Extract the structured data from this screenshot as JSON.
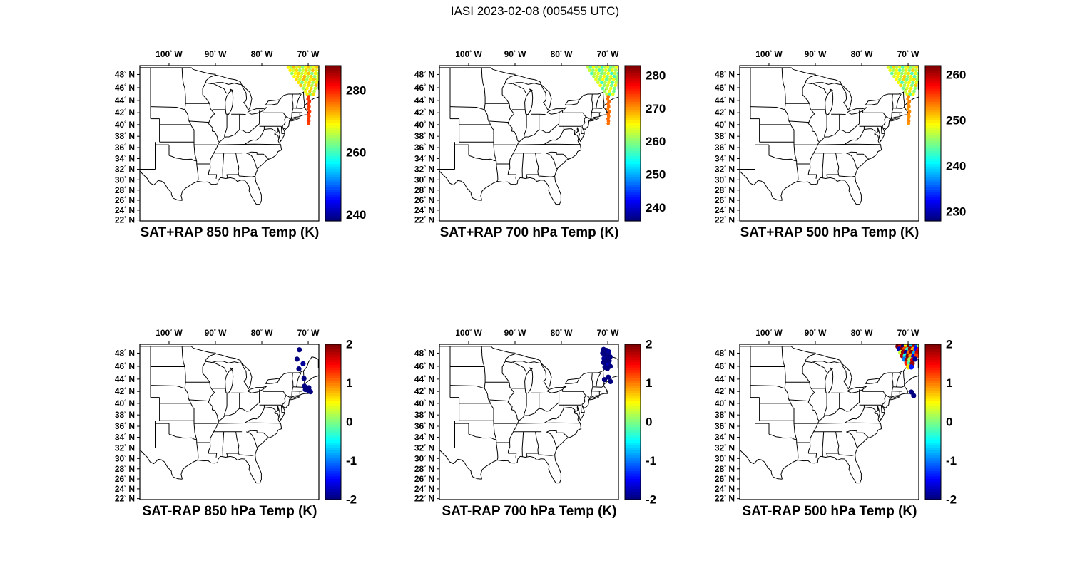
{
  "figure_title": "IASI 2023-02-08 (005455 UTC)",
  "axes": {
    "lon_range": [
      -106.3,
      -67.7
    ],
    "lat_range": [
      21.8,
      49.3
    ],
    "lon_tick_values": [
      -100,
      -90,
      -80,
      -70
    ],
    "lon_tick_labels": [
      "100",
      "90",
      "80",
      "70"
    ],
    "lon_suffix": "W",
    "lat_tick_values": [
      48,
      46,
      44,
      42,
      40,
      38,
      36,
      34,
      32,
      30,
      28,
      26,
      24,
      22
    ],
    "lat_tick_labels": [
      "48",
      "46",
      "44",
      "42",
      "40",
      "38",
      "36",
      "34",
      "32",
      "30",
      "28",
      "26",
      "24",
      "22"
    ],
    "lat_suffix": "N"
  },
  "chart_data": [
    {
      "type": "scatter-map",
      "title": "SAT+RAP 850 hPa Temp (K)",
      "level_hPa": 850,
      "quantity": "SAT+RAP Temp (K)",
      "colormap": "jet",
      "cmin": 238,
      "cmax": 288,
      "colorbar_ticks": [
        240,
        260,
        280
      ],
      "swath_base": 268,
      "swath_spread": 5,
      "streak_value": 279
    },
    {
      "type": "scatter-map",
      "title": "SAT+RAP 700 hPa Temp (K)",
      "level_hPa": 700,
      "quantity": "SAT+RAP Temp (K)",
      "colormap": "jet",
      "cmin": 236,
      "cmax": 283,
      "colorbar_ticks": [
        240,
        250,
        260,
        270,
        280
      ],
      "swath_base": 261,
      "swath_spread": 5,
      "streak_value": 272
    },
    {
      "type": "scatter-map",
      "title": "SAT+RAP 500 hPa Temp (K)",
      "level_hPa": 500,
      "quantity": "SAT+RAP Temp (K)",
      "colormap": "jet",
      "cmin": 228,
      "cmax": 262,
      "colorbar_ticks": [
        230,
        240,
        250,
        260
      ],
      "swath_base": 247,
      "swath_spread": 4,
      "streak_value": 253
    },
    {
      "type": "scatter-map",
      "title": "SAT-RAP 850 hPa Temp (K)",
      "level_hPa": 850,
      "quantity": "SAT-RAP Temp (K)",
      "colormap": "jet",
      "cmin": -2,
      "cmax": 2,
      "colorbar_ticks": [
        -2,
        -1,
        0,
        1,
        2
      ],
      "points": [
        [
          -71.9,
          48.5,
          -2
        ],
        [
          -72.4,
          47.1,
          -2
        ],
        [
          -71.1,
          46.4,
          -1.9
        ],
        [
          -72.0,
          45.6,
          -2
        ],
        [
          -70.9,
          44.1,
          -2
        ],
        [
          -70.8,
          42.85,
          -2
        ],
        [
          -70.3,
          42.55,
          -1.9
        ],
        [
          -70.6,
          42.3,
          -2
        ],
        [
          -70.05,
          42.2,
          -2
        ],
        [
          -69.85,
          42.6,
          -2
        ],
        [
          -69.5,
          41.95,
          -2
        ]
      ]
    },
    {
      "type": "scatter-map",
      "title": "SAT-RAP 700 hPa Temp (K)",
      "level_hPa": 700,
      "quantity": "SAT-RAP Temp (K)",
      "colormap": "jet",
      "cmin": -2,
      "cmax": 2,
      "colorbar_ticks": [
        -2,
        -1,
        0,
        1,
        2
      ],
      "points": [
        [
          -70.9,
          48.55,
          -2
        ],
        [
          -70.3,
          48.4,
          -2
        ],
        [
          -69.8,
          48.2,
          -1.9
        ],
        [
          -71.1,
          48.0,
          -2
        ],
        [
          -70.55,
          47.8,
          -2
        ],
        [
          -70.0,
          47.6,
          -2
        ],
        [
          -69.5,
          47.45,
          -2
        ],
        [
          -70.8,
          47.2,
          -1.9
        ],
        [
          -70.25,
          47.0,
          -2
        ],
        [
          -69.7,
          46.85,
          -2
        ],
        [
          -70.95,
          46.6,
          -2
        ],
        [
          -70.4,
          46.4,
          -2
        ],
        [
          -69.85,
          46.2,
          -1.8
        ],
        [
          -69.45,
          46.0,
          -2
        ],
        [
          -70.6,
          45.85,
          -2
        ],
        [
          -70.1,
          45.65,
          -2
        ],
        [
          -69.9,
          44.3,
          -2
        ],
        [
          -70.7,
          43.9,
          -2
        ],
        [
          -69.4,
          43.6,
          -2
        ]
      ]
    },
    {
      "type": "scatter-map",
      "title": "SAT-RAP 500 hPa Temp (K)",
      "level_hPa": 500,
      "quantity": "SAT-RAP Temp (K)",
      "colormap": "jet",
      "cmin": -2,
      "cmax": 2,
      "colorbar_ticks": [
        -2,
        -1,
        0,
        1,
        2
      ],
      "points": [
        [
          -72.2,
          49.0,
          2
        ],
        [
          -71.6,
          49.1,
          1.6
        ],
        [
          -71.0,
          49.0,
          -2
        ],
        [
          -70.4,
          49.1,
          0.5
        ],
        [
          -69.8,
          49.0,
          2
        ],
        [
          -69.2,
          49.05,
          -0.6
        ],
        [
          -68.6,
          49.0,
          1.8
        ],
        [
          -68.0,
          49.1,
          -1.2
        ],
        [
          -67.6,
          49.0,
          0.2
        ],
        [
          -71.9,
          48.6,
          -1.8
        ],
        [
          -71.3,
          48.55,
          2
        ],
        [
          -70.7,
          48.6,
          1.2
        ],
        [
          -70.1,
          48.5,
          -0.3
        ],
        [
          -69.5,
          48.6,
          1.9
        ],
        [
          -68.9,
          48.55,
          0.8
        ],
        [
          -68.3,
          48.6,
          -1.5
        ],
        [
          -67.7,
          48.5,
          1.5
        ],
        [
          -71.6,
          48.1,
          0.3
        ],
        [
          -71.0,
          48.15,
          1.9
        ],
        [
          -70.4,
          48.1,
          -1.9
        ],
        [
          -69.8,
          48.05,
          1.1
        ],
        [
          -69.2,
          48.1,
          2
        ],
        [
          -68.6,
          48.0,
          -0.8
        ],
        [
          -68.0,
          48.1,
          1.7
        ],
        [
          -71.2,
          47.6,
          1.8
        ],
        [
          -70.6,
          47.6,
          -0.4
        ],
        [
          -70.0,
          47.55,
          2
        ],
        [
          -69.4,
          47.6,
          0.9
        ],
        [
          -68.8,
          47.5,
          -1.7
        ],
        [
          -68.2,
          47.6,
          1.3
        ],
        [
          -70.8,
          47.1,
          -1.0
        ],
        [
          -70.2,
          47.0,
          1.9
        ],
        [
          -69.6,
          47.05,
          0.1
        ],
        [
          -69.0,
          47.0,
          1.6
        ],
        [
          -68.5,
          47.1,
          -1.9
        ],
        [
          -70.3,
          46.5,
          1.4
        ],
        [
          -69.7,
          46.5,
          -0.2
        ],
        [
          -69.1,
          46.45,
          1.9
        ],
        [
          -69.9,
          45.9,
          0.6
        ],
        [
          -69.3,
          45.9,
          -1.4
        ],
        [
          -69.3,
          41.9,
          -2
        ],
        [
          -68.8,
          41.3,
          -2
        ]
      ]
    }
  ],
  "footprint": {
    "streak_start": 67,
    "points": [
      [
        -74.3,
        49.05
      ],
      [
        -73.68,
        49.05
      ],
      [
        -73.06,
        49.05
      ],
      [
        -72.44,
        49.05
      ],
      [
        -71.82,
        49.05
      ],
      [
        -71.2,
        49.05
      ],
      [
        -70.58,
        49.05
      ],
      [
        -69.96,
        49.05
      ],
      [
        -69.34,
        49.05
      ],
      [
        -68.72,
        49.05
      ],
      [
        -68.1,
        49.05
      ],
      [
        -67.48,
        49.05
      ],
      [
        -73.9,
        48.6
      ],
      [
        -73.2,
        48.6
      ],
      [
        -72.5,
        48.6
      ],
      [
        -71.8,
        48.6
      ],
      [
        -71.1,
        48.6
      ],
      [
        -70.4,
        48.6
      ],
      [
        -69.7,
        48.6
      ],
      [
        -69.0,
        48.6
      ],
      [
        -68.3,
        48.6
      ],
      [
        -67.6,
        48.6
      ],
      [
        -73.5,
        48.15
      ],
      [
        -72.78,
        48.15
      ],
      [
        -72.06,
        48.15
      ],
      [
        -71.34,
        48.15
      ],
      [
        -70.62,
        48.15
      ],
      [
        -69.9,
        48.15
      ],
      [
        -69.18,
        48.15
      ],
      [
        -68.46,
        48.15
      ],
      [
        -67.75,
        48.15
      ],
      [
        -73.0,
        47.7
      ],
      [
        -72.27,
        47.7
      ],
      [
        -71.54,
        47.7
      ],
      [
        -70.81,
        47.7
      ],
      [
        -70.08,
        47.7
      ],
      [
        -69.35,
        47.7
      ],
      [
        -68.62,
        47.7
      ],
      [
        -67.9,
        47.7
      ],
      [
        -72.55,
        47.25
      ],
      [
        -71.79,
        47.25
      ],
      [
        -71.03,
        47.25
      ],
      [
        -70.27,
        47.25
      ],
      [
        -69.51,
        47.25
      ],
      [
        -68.75,
        47.25
      ],
      [
        -68.0,
        47.25
      ],
      [
        -72.1,
        46.8
      ],
      [
        -71.32,
        46.8
      ],
      [
        -70.54,
        46.8
      ],
      [
        -69.76,
        46.8
      ],
      [
        -68.98,
        46.8
      ],
      [
        -68.2,
        46.8
      ],
      [
        -71.6,
        46.35
      ],
      [
        -70.79,
        46.35
      ],
      [
        -69.98,
        46.35
      ],
      [
        -69.17,
        46.35
      ],
      [
        -68.35,
        46.35
      ],
      [
        -71.1,
        45.9
      ],
      [
        -70.23,
        45.9
      ],
      [
        -69.36,
        45.9
      ],
      [
        -68.5,
        45.9
      ],
      [
        -70.6,
        45.45
      ],
      [
        -69.65,
        45.45
      ],
      [
        -68.7,
        45.45
      ],
      [
        -70.2,
        45.0
      ],
      [
        -69.55,
        45.0
      ],
      [
        -68.9,
        45.0
      ],
      [
        -69.9,
        44.6
      ],
      [
        -70.05,
        44.2
      ],
      [
        -69.75,
        43.8
      ],
      [
        -69.95,
        43.4
      ],
      [
        -69.8,
        43.0
      ],
      [
        -70.0,
        42.6
      ],
      [
        -69.7,
        42.2
      ],
      [
        -69.9,
        41.8
      ],
      [
        -69.8,
        41.4
      ],
      [
        -69.95,
        41.0
      ],
      [
        -69.85,
        40.6
      ],
      [
        -69.9,
        40.2
      ]
    ],
    "speckle": [
      0.3,
      -0.7,
      0.9,
      -0.2,
      0.55,
      -0.95,
      0.15,
      0.75,
      -0.45,
      0.05,
      0.85,
      -0.6,
      0.35,
      -0.15,
      0.65,
      -0.85,
      -0.25,
      0.7,
      -0.5,
      0.95,
      -0.05,
      0.45,
      -0.75,
      0.25,
      0.6,
      -0.35,
      0.1,
      0.8,
      -0.9,
      0.4,
      -0.65,
      0.2,
      0.5,
      -0.1,
      0.95,
      -0.4,
      0.7,
      -0.8,
      0.0,
      0.6,
      -0.3,
      0.9,
      -0.55,
      0.3,
      0.75,
      -0.2,
      0.45,
      -1.0,
      0.1,
      0.65,
      -0.7,
      0.35,
      0.85,
      -0.15,
      0.55,
      -0.45,
      0.95,
      -0.65,
      0.25,
      0.7,
      -0.35,
      0.05,
      0.8,
      -0.5,
      0.4,
      -0.9,
      0.6,
      0.15,
      -0.25,
      0.5,
      -0.05,
      0.3,
      -0.6,
      0.2,
      0.45,
      -0.3,
      0.1,
      0.35,
      -0.2
    ]
  }
}
